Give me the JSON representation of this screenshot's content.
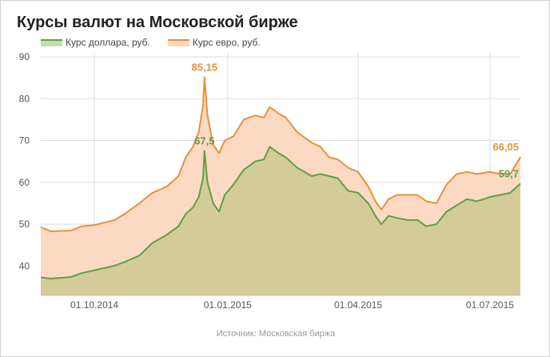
{
  "title": "Курсы валют на Московской бирже",
  "source": "Источник: Московская биржа",
  "colors": {
    "usd_line": "#5f9f46",
    "usd_fill": "#d4cb9a",
    "eur_line": "#e8913d",
    "eur_fill": "#fbd9c2",
    "grid": "#dddddd",
    "axis_text": "#555555"
  },
  "chart_data": {
    "type": "area",
    "title": "Курсы валют на Московской бирже",
    "xlabel": "",
    "ylabel": "",
    "ylim": [
      33,
      90
    ],
    "yticks": [
      40,
      50,
      60,
      70,
      80,
      90
    ],
    "xlim": [
      "2014-08-25",
      "2015-07-22"
    ],
    "xticks": [
      {
        "date": "2014-10-01",
        "label": "01.10.2014"
      },
      {
        "date": "2015-01-01",
        "label": "01.01.2015"
      },
      {
        "date": "2015-04-01",
        "label": "01.04.2015"
      },
      {
        "date": "2015-07-01",
        "label": "01.07.2015"
      }
    ],
    "grid": true,
    "legend_position": "top-left",
    "series": [
      {
        "name": "Курс доллара, руб.",
        "points": [
          [
            "2014-08-25",
            37.3
          ],
          [
            "2014-09-01",
            37.0
          ],
          [
            "2014-09-15",
            37.4
          ],
          [
            "2014-09-22",
            38.3
          ],
          [
            "2014-10-01",
            39.0
          ],
          [
            "2014-10-15",
            40.1
          ],
          [
            "2014-10-22",
            41.0
          ],
          [
            "2014-11-01",
            42.5
          ],
          [
            "2014-11-10",
            45.5
          ],
          [
            "2014-11-20",
            47.5
          ],
          [
            "2014-11-28",
            49.5
          ],
          [
            "2014-12-03",
            52.5
          ],
          [
            "2014-12-08",
            54.0
          ],
          [
            "2014-12-12",
            56.5
          ],
          [
            "2014-12-15",
            61.0
          ],
          [
            "2014-12-16",
            67.5
          ],
          [
            "2014-12-18",
            60.0
          ],
          [
            "2014-12-22",
            55.0
          ],
          [
            "2014-12-26",
            53.0
          ],
          [
            "2014-12-30",
            57.0
          ],
          [
            "2015-01-05",
            59.5
          ],
          [
            "2015-01-12",
            63.0
          ],
          [
            "2015-01-20",
            65.0
          ],
          [
            "2015-01-26",
            65.5
          ],
          [
            "2015-01-30",
            68.5
          ],
          [
            "2015-02-05",
            67.0
          ],
          [
            "2015-02-10",
            66.0
          ],
          [
            "2015-02-18",
            63.5
          ],
          [
            "2015-02-28",
            61.5
          ],
          [
            "2015-03-06",
            62.0
          ],
          [
            "2015-03-12",
            61.5
          ],
          [
            "2015-03-18",
            61.0
          ],
          [
            "2015-03-25",
            58.0
          ],
          [
            "2015-04-01",
            57.5
          ],
          [
            "2015-04-08",
            55.0
          ],
          [
            "2015-04-13",
            52.0
          ],
          [
            "2015-04-17",
            50.0
          ],
          [
            "2015-04-22",
            52.0
          ],
          [
            "2015-04-28",
            51.5
          ],
          [
            "2015-05-05",
            51.0
          ],
          [
            "2015-05-12",
            51.0
          ],
          [
            "2015-05-18",
            49.5
          ],
          [
            "2015-05-25",
            50.0
          ],
          [
            "2015-06-01",
            53.0
          ],
          [
            "2015-06-08",
            54.5
          ],
          [
            "2015-06-15",
            56.0
          ],
          [
            "2015-06-22",
            55.5
          ],
          [
            "2015-07-01",
            56.5
          ],
          [
            "2015-07-08",
            57.0
          ],
          [
            "2015-07-15",
            57.5
          ],
          [
            "2015-07-22",
            59.7
          ]
        ]
      },
      {
        "name": "Курс евро, руб.",
        "points": [
          [
            "2014-08-25",
            49.3
          ],
          [
            "2014-09-01",
            48.3
          ],
          [
            "2014-09-15",
            48.5
          ],
          [
            "2014-09-22",
            49.5
          ],
          [
            "2014-10-01",
            49.8
          ],
          [
            "2014-10-15",
            51.0
          ],
          [
            "2014-10-22",
            52.5
          ],
          [
            "2014-11-01",
            55.0
          ],
          [
            "2014-11-10",
            57.5
          ],
          [
            "2014-11-20",
            59.0
          ],
          [
            "2014-11-28",
            61.5
          ],
          [
            "2014-12-03",
            66.0
          ],
          [
            "2014-12-08",
            68.5
          ],
          [
            "2014-12-12",
            72.0
          ],
          [
            "2014-12-15",
            78.5
          ],
          [
            "2014-12-16",
            85.15
          ],
          [
            "2014-12-18",
            76.0
          ],
          [
            "2014-12-22",
            69.0
          ],
          [
            "2014-12-26",
            67.0
          ],
          [
            "2014-12-30",
            70.0
          ],
          [
            "2015-01-05",
            71.0
          ],
          [
            "2015-01-12",
            75.0
          ],
          [
            "2015-01-20",
            76.0
          ],
          [
            "2015-01-26",
            75.5
          ],
          [
            "2015-01-30",
            78.0
          ],
          [
            "2015-02-05",
            76.5
          ],
          [
            "2015-02-10",
            75.5
          ],
          [
            "2015-02-18",
            72.0
          ],
          [
            "2015-02-28",
            69.5
          ],
          [
            "2015-03-06",
            68.5
          ],
          [
            "2015-03-12",
            66.0
          ],
          [
            "2015-03-18",
            65.5
          ],
          [
            "2015-03-25",
            63.5
          ],
          [
            "2015-04-01",
            62.5
          ],
          [
            "2015-04-08",
            59.0
          ],
          [
            "2015-04-13",
            55.5
          ],
          [
            "2015-04-17",
            53.5
          ],
          [
            "2015-04-22",
            56.0
          ],
          [
            "2015-04-28",
            57.0
          ],
          [
            "2015-05-05",
            57.0
          ],
          [
            "2015-05-12",
            57.0
          ],
          [
            "2015-05-18",
            55.5
          ],
          [
            "2015-05-25",
            55.0
          ],
          [
            "2015-06-01",
            59.5
          ],
          [
            "2015-06-08",
            62.0
          ],
          [
            "2015-06-15",
            62.5
          ],
          [
            "2015-06-22",
            62.0
          ],
          [
            "2015-07-01",
            62.5
          ],
          [
            "2015-07-08",
            62.0
          ],
          [
            "2015-07-15",
            62.0
          ],
          [
            "2015-07-22",
            66.05
          ]
        ]
      }
    ],
    "annotations": [
      {
        "series": "Курс евро, руб.",
        "date": "2014-12-16",
        "value": 85.15,
        "label": "85,15"
      },
      {
        "series": "Курс доллара, руб.",
        "date": "2014-12-16",
        "value": 67.5,
        "label": "67,5"
      },
      {
        "series": "Курс евро, руб.",
        "date": "2015-07-22",
        "value": 66.05,
        "label": "66,05"
      },
      {
        "series": "Курс доллара, руб.",
        "date": "2015-07-22",
        "value": 59.7,
        "label": "59,7"
      }
    ]
  }
}
